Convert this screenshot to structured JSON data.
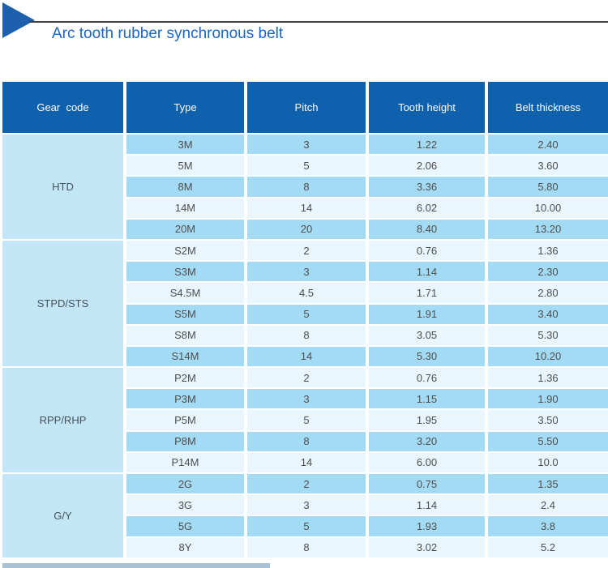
{
  "title": {
    "text": "Arc tooth rubber synchronous belt",
    "marker_icon": "right-triangle-icon"
  },
  "colors": {
    "header_bg": "#1061ad",
    "row_even": "#a4dbf4",
    "row_odd": "#e9f6fd",
    "gear_cell_bg": "#c3e6f7",
    "title_color": "#1a66c8",
    "triangle_color": "#1c5fad",
    "rule_color": "#3f3f3f",
    "cell_text": "#4e4e4e",
    "gear_text": "#45525a",
    "bottom_bar": "#a9c1d4"
  },
  "table": {
    "columns": [
      "Gear  code",
      "Type",
      "Pitch",
      "Tooth height",
      "Belt thickness"
    ],
    "sections": [
      {
        "gear_code": "HTD",
        "rows": [
          [
            "3M",
            "3",
            "1.22",
            "2.40"
          ],
          [
            "5M",
            "5",
            "2.06",
            "3.60"
          ],
          [
            "8M",
            "8",
            "3.36",
            "5.80"
          ],
          [
            "14M",
            "14",
            "6.02",
            "10.00"
          ],
          [
            "20M",
            "20",
            "8.40",
            "13.20"
          ]
        ]
      },
      {
        "gear_code": "STPD/STS",
        "rows": [
          [
            "S2M",
            "2",
            "0.76",
            "1.36"
          ],
          [
            "S3M",
            "3",
            "1.14",
            "2.30"
          ],
          [
            "S4.5M",
            "4.5",
            "1.71",
            "2.80"
          ],
          [
            "S5M",
            "5",
            "1.91",
            "3.40"
          ],
          [
            "S8M",
            "8",
            "3.05",
            "5.30"
          ],
          [
            "S14M",
            "14",
            "5.30",
            "10.20"
          ]
        ]
      },
      {
        "gear_code": "RPP/RHP",
        "rows": [
          [
            "P2M",
            "2",
            "0.76",
            "1.36"
          ],
          [
            "P3M",
            "3",
            "1.15",
            "1.90"
          ],
          [
            "P5M",
            "5",
            "1.95",
            "3.50"
          ],
          [
            "P8M",
            "8",
            "3.20",
            "5.50"
          ],
          [
            "P14M",
            "14",
            "6.00",
            "10.0"
          ]
        ]
      },
      {
        "gear_code": "G/Y",
        "rows": [
          [
            "2G",
            "2",
            "0.75",
            "1.35"
          ],
          [
            "3G",
            "3",
            "1.14",
            "2.4"
          ],
          [
            "5G",
            "5",
            "1.93",
            "3.8"
          ],
          [
            "8Y",
            "8",
            "3.02",
            "5.2"
          ]
        ]
      }
    ]
  }
}
